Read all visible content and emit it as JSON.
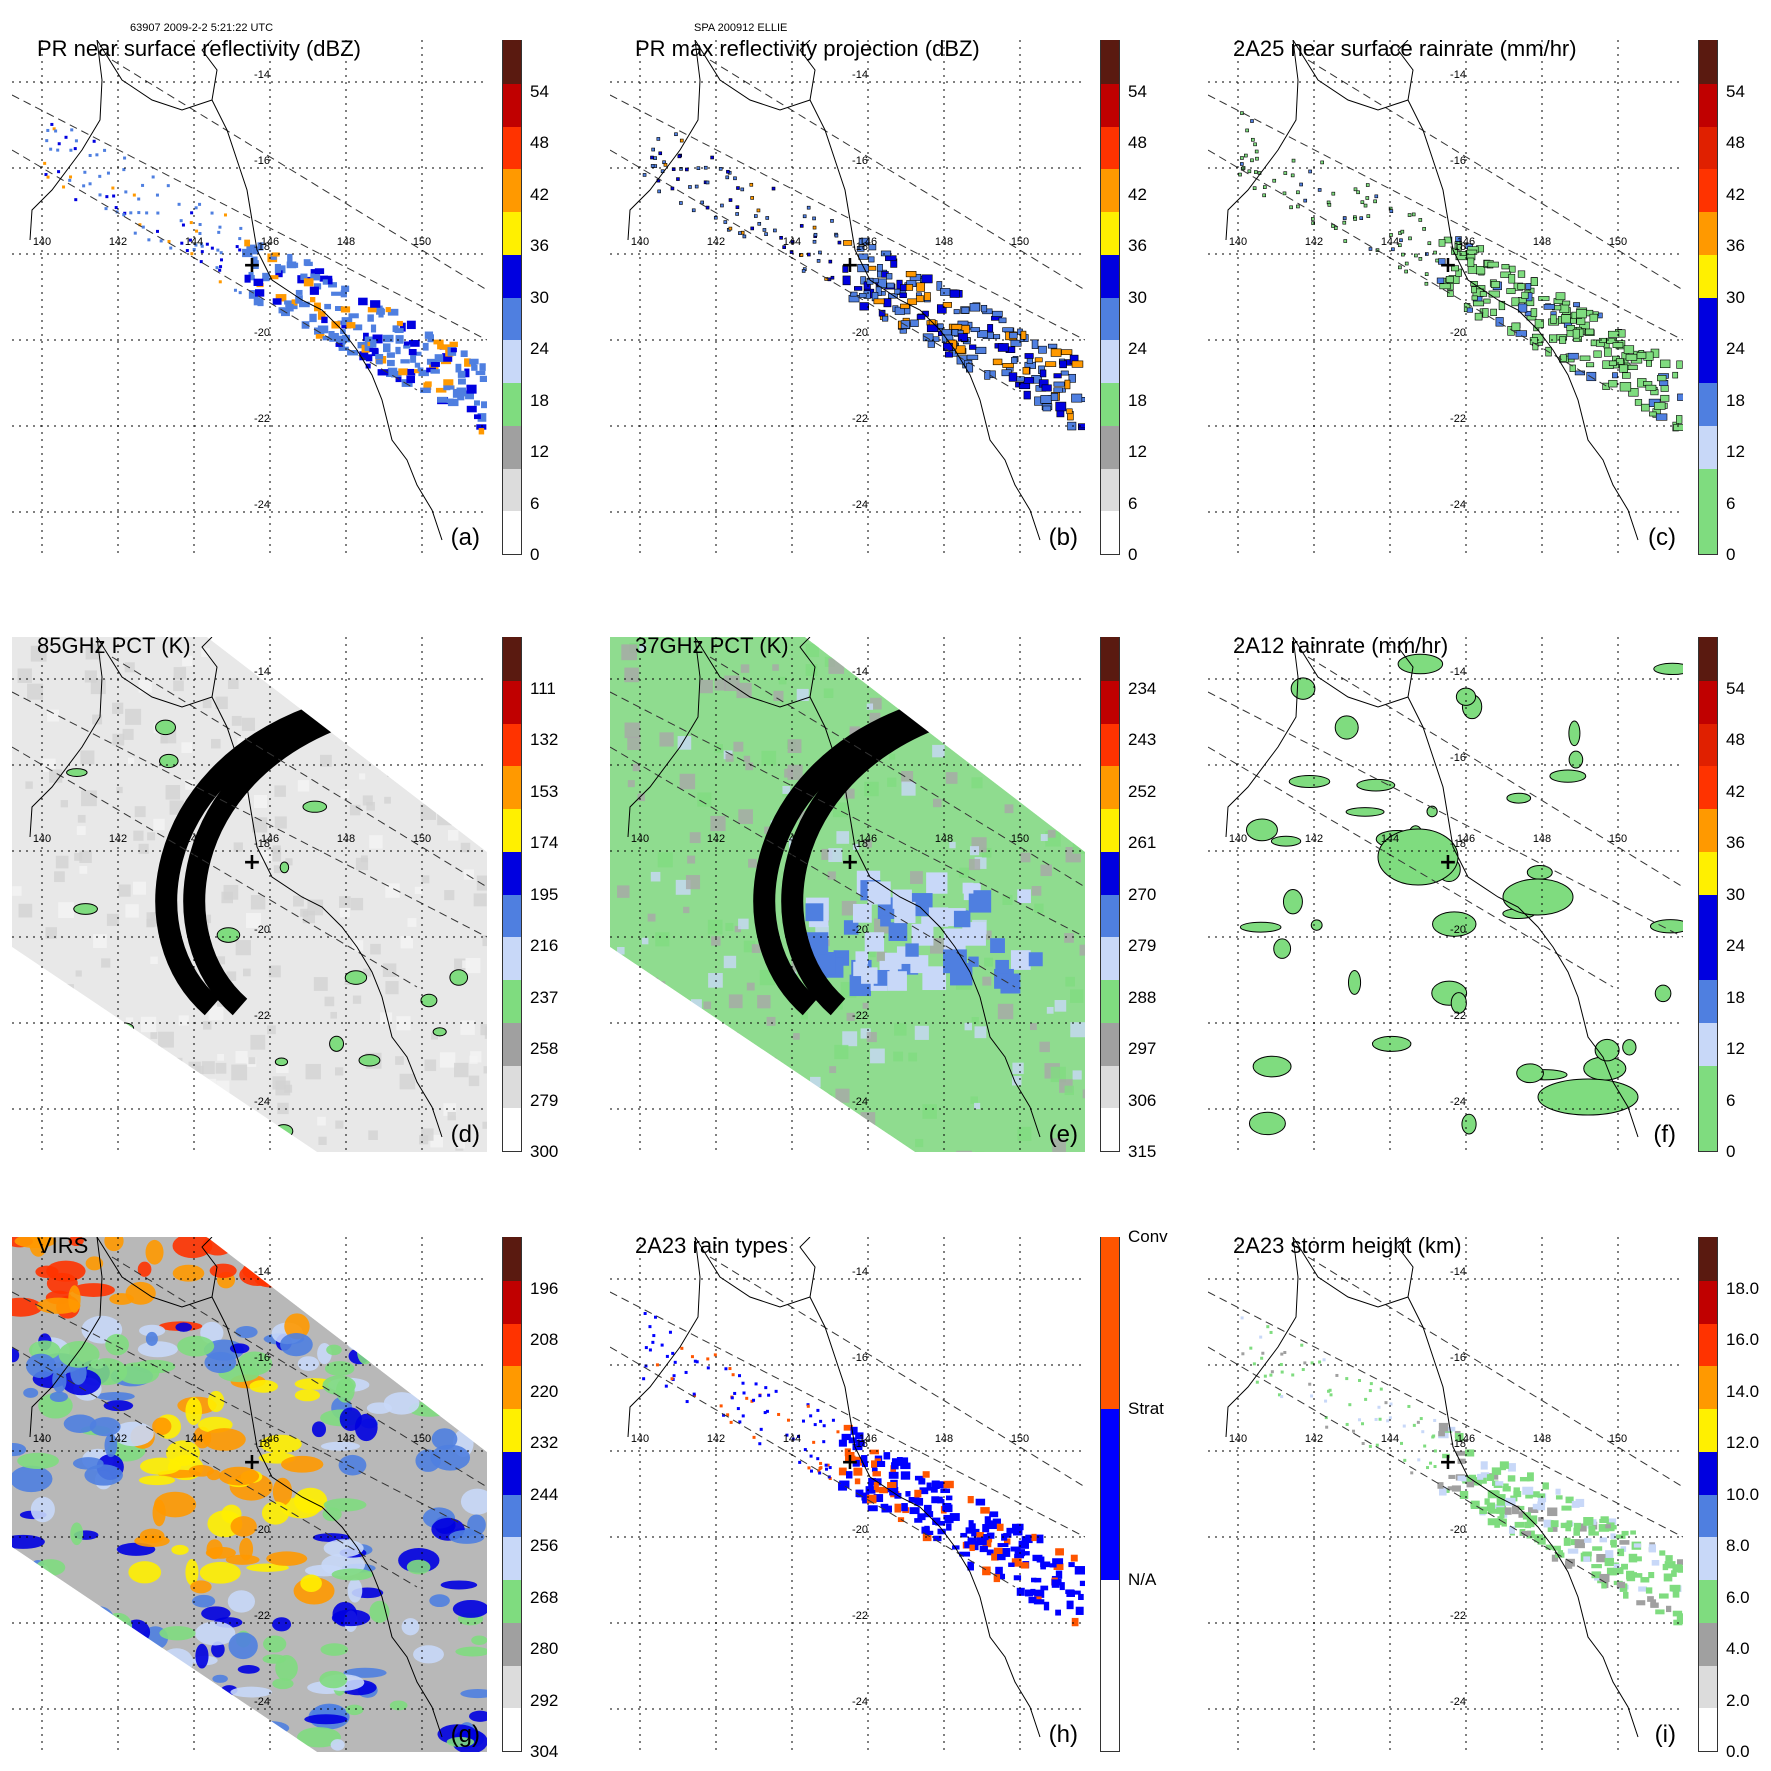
{
  "header": {
    "left": "63907 2009-2-2 5:21:22 UTC",
    "center": "SPA 200912 ELLIE"
  },
  "panels": [
    {
      "id": "a",
      "title": "PR near surface reflectivity (dBZ)",
      "label": "(a)",
      "field": "swath",
      "lon_labels": [
        "140",
        "142",
        "144",
        "146",
        "148",
        "150"
      ],
      "lat_labels": [
        "-14",
        "-16",
        "-18",
        "-20",
        "-22",
        "-24"
      ],
      "cbar_ticks": [
        "54",
        "48",
        "42",
        "36",
        "30",
        "24",
        "18",
        "12",
        "6",
        "0"
      ],
      "palette": [
        "#ffffff",
        "#dcdcdc",
        "#a0a0a0",
        "#7fdc7f",
        "#c8d8f8",
        "#4f7fe0",
        "#0000e0",
        "#fff000",
        "#ff9900",
        "#ff3300",
        "#c00000",
        "#5a1a10"
      ]
    },
    {
      "id": "b",
      "title": "PR max reflectivity projection (dBZ)",
      "label": "(b)",
      "field": "swath",
      "lon_labels": [
        "140",
        "142",
        "144",
        "146",
        "148",
        "150"
      ],
      "lat_labels": [
        "-14",
        "-16",
        "-18",
        "-20",
        "-22",
        "-24"
      ],
      "cbar_ticks": [
        "54",
        "48",
        "42",
        "36",
        "30",
        "24",
        "18",
        "12",
        "6",
        "0"
      ],
      "palette": [
        "#ffffff",
        "#dcdcdc",
        "#a0a0a0",
        "#7fdc7f",
        "#c8d8f8",
        "#4f7fe0",
        "#0000e0",
        "#fff000",
        "#ff9900",
        "#ff3300",
        "#c00000",
        "#5a1a10"
      ]
    },
    {
      "id": "c",
      "title": "2A25 near surface rainrate (mm/hr)",
      "label": "(c)",
      "field": "swath",
      "lon_labels": [
        "140",
        "142",
        "144",
        "146",
        "148",
        "150"
      ],
      "lat_labels": [
        "-14",
        "-16",
        "-18",
        "-20",
        "-22",
        "-24"
      ],
      "cbar_ticks": [
        "54",
        "48",
        "42",
        "36",
        "30",
        "24",
        "18",
        "12",
        "6",
        "0"
      ],
      "palette": [
        "#7fdc7f",
        "#7fdc7f",
        "#c8d8f8",
        "#4f7fe0",
        "#0000e0",
        "#0000e0",
        "#fff000",
        "#ff9900",
        "#ff3300",
        "#e02000",
        "#c00000",
        "#5a1a10"
      ]
    },
    {
      "id": "d",
      "title": "85GHz PCT (K)",
      "label": "(d)",
      "field": "tmi",
      "lon_labels": [
        "140",
        "142",
        "144",
        "146",
        "148",
        "150"
      ],
      "lat_labels": [
        "-14",
        "-16",
        "-18",
        "-20",
        "-22",
        "-24"
      ],
      "cbar_ticks": [
        "111",
        "132",
        "153",
        "174",
        "195",
        "216",
        "237",
        "258",
        "279",
        "300"
      ],
      "palette": [
        "#ffffff",
        "#dcdcdc",
        "#a0a0a0",
        "#7fdc7f",
        "#c8d8f8",
        "#4f7fe0",
        "#0000e0",
        "#fff000",
        "#ff9900",
        "#ff3300",
        "#c00000",
        "#5a1a10"
      ]
    },
    {
      "id": "e",
      "title": "37GHz PCT (K)",
      "label": "(e)",
      "field": "tmi",
      "lon_labels": [
        "140",
        "142",
        "144",
        "146",
        "148",
        "150"
      ],
      "lat_labels": [
        "-14",
        "-16",
        "-18",
        "-20",
        "-22",
        "-24"
      ],
      "cbar_ticks": [
        "234",
        "243",
        "252",
        "261",
        "270",
        "279",
        "288",
        "297",
        "306",
        "315"
      ],
      "palette": [
        "#ffffff",
        "#dcdcdc",
        "#a0a0a0",
        "#7fdc7f",
        "#c8d8f8",
        "#4f7fe0",
        "#0000e0",
        "#fff000",
        "#ff9900",
        "#ff3300",
        "#c00000",
        "#5a1a10"
      ]
    },
    {
      "id": "f",
      "title": "2A12 rainrate (mm/hr)",
      "label": "(f)",
      "field": "sparse",
      "lon_labels": [
        "140",
        "142",
        "144",
        "146",
        "148",
        "150"
      ],
      "lat_labels": [
        "-14",
        "-16",
        "-18",
        "-20",
        "-22",
        "-24"
      ],
      "cbar_ticks": [
        "54",
        "48",
        "42",
        "36",
        "30",
        "24",
        "18",
        "12",
        "6",
        "0"
      ],
      "palette": [
        "#7fdc7f",
        "#7fdc7f",
        "#c8d8f8",
        "#4f7fe0",
        "#0000e0",
        "#0000e0",
        "#fff000",
        "#ff9900",
        "#ff3300",
        "#e02000",
        "#c00000",
        "#5a1a10"
      ]
    },
    {
      "id": "g",
      "title": "VIRS",
      "label": "(g)",
      "field": "virs",
      "lon_labels": [
        "140",
        "142",
        "144",
        "146",
        "148",
        "150"
      ],
      "lat_labels": [
        "-14",
        "-16",
        "-18",
        "-20",
        "-22",
        "-24"
      ],
      "cbar_ticks": [
        "196",
        "208",
        "220",
        "232",
        "244",
        "256",
        "268",
        "280",
        "292",
        "304"
      ],
      "palette": [
        "#ffffff",
        "#dcdcdc",
        "#a0a0a0",
        "#7fdc7f",
        "#c8d8f8",
        "#4f7fe0",
        "#0000e0",
        "#fff000",
        "#ff9900",
        "#ff3300",
        "#c00000",
        "#5a1a10"
      ]
    },
    {
      "id": "h",
      "title": "2A23 rain types",
      "label": "(h)",
      "field": "types",
      "lon_labels": [
        "140",
        "142",
        "144",
        "146",
        "148",
        "150"
      ],
      "lat_labels": [
        "-14",
        "-16",
        "-18",
        "-20",
        "-22",
        "-24"
      ],
      "cbar_ticks": [
        "Conv",
        "Strat",
        "N/A"
      ],
      "palette": [
        "#ffffff",
        "#0000ff",
        "#ff5500"
      ]
    },
    {
      "id": "i",
      "title": "2A23 storm height (km)",
      "label": "(i)",
      "field": "swath",
      "lon_labels": [
        "140",
        "142",
        "144",
        "146",
        "148",
        "150"
      ],
      "lat_labels": [
        "-14",
        "-16",
        "-18",
        "-20",
        "-22",
        "-24"
      ],
      "cbar_ticks": [
        "18.0",
        "16.0",
        "14.0",
        "12.0",
        "10.0",
        "8.0",
        "6.0",
        "4.0",
        "2.0",
        "0.0"
      ],
      "palette": [
        "#ffffff",
        "#dcdcdc",
        "#a0a0a0",
        "#7fdc7f",
        "#c8d8f8",
        "#4f7fe0",
        "#0000e0",
        "#fff000",
        "#ff9900",
        "#ff3300",
        "#c00000",
        "#5a1a10"
      ]
    }
  ]
}
